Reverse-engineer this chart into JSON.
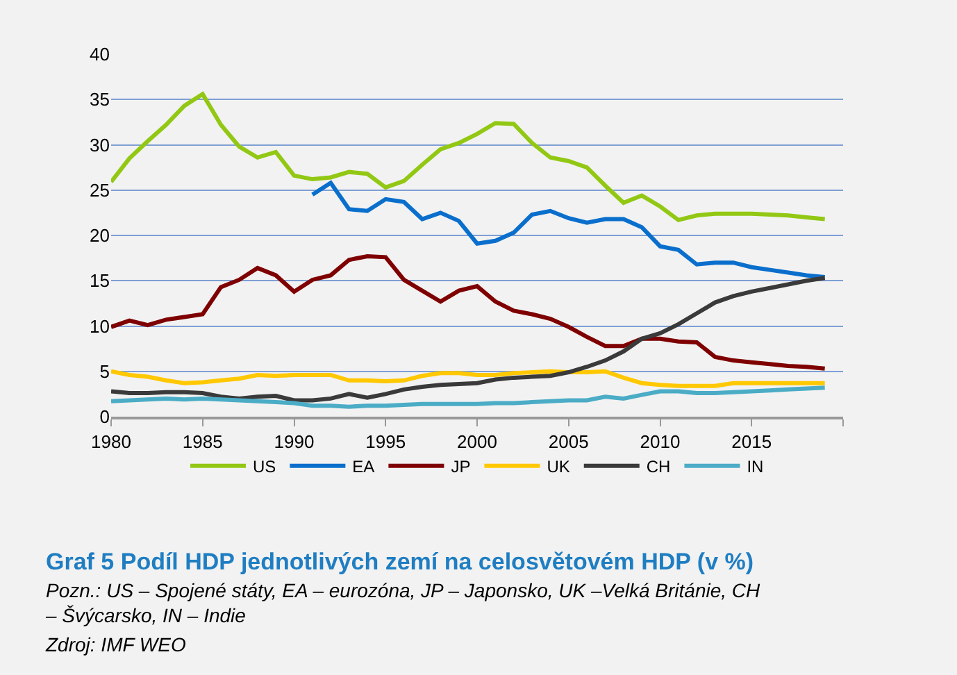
{
  "chart_data": {
    "type": "line",
    "title": "Graf 5 Podíl HDP jednotlivých zemí na celosvětovém HDP (v %)",
    "annotations": [
      "Pozn.: US – Spojené státy, EA – eurozóna, JP – Japonsko, UK –Velká Británie, CH – Švýcarsko, IN – Indie",
      "Zdroj: IMF WEO"
    ],
    "x": [
      1980,
      1981,
      1982,
      1983,
      1984,
      1985,
      1986,
      1987,
      1988,
      1989,
      1990,
      1991,
      1992,
      1993,
      1994,
      1995,
      1996,
      1997,
      1998,
      1999,
      2000,
      2001,
      2002,
      2003,
      2004,
      2005,
      2006,
      2007,
      2008,
      2009,
      2010,
      2011,
      2012,
      2013,
      2014,
      2015,
      2016,
      2017,
      2018,
      2019
    ],
    "series": [
      {
        "name": "US",
        "color": "#92c814",
        "values": [
          25.9,
          28.5,
          30.4,
          32.2,
          34.3,
          35.6,
          32.2,
          29.8,
          28.6,
          29.2,
          26.6,
          26.2,
          26.4,
          27.0,
          26.8,
          25.3,
          26.0,
          27.8,
          29.5,
          30.2,
          31.2,
          32.4,
          32.3,
          30.2,
          28.6,
          28.2,
          27.5,
          25.5,
          23.6,
          24.4,
          23.2,
          21.7,
          22.2,
          22.4,
          22.4,
          22.4,
          22.3,
          22.2,
          22.0,
          21.8
        ]
      },
      {
        "name": "EA",
        "color": "#0a6fcc",
        "values": [
          null,
          null,
          null,
          null,
          null,
          null,
          null,
          null,
          null,
          null,
          null,
          24.5,
          25.8,
          22.9,
          22.7,
          24.0,
          23.7,
          21.8,
          22.5,
          21.6,
          19.1,
          19.4,
          20.3,
          22.3,
          22.7,
          21.9,
          21.4,
          21.8,
          21.8,
          20.9,
          18.8,
          18.4,
          16.8,
          17.0,
          17.0,
          16.5,
          16.2,
          15.9,
          15.6,
          15.4
        ]
      },
      {
        "name": "JP",
        "color": "#7f0000",
        "values": [
          9.9,
          10.6,
          10.1,
          10.7,
          11.0,
          11.3,
          14.3,
          15.1,
          16.4,
          15.6,
          13.8,
          15.1,
          15.6,
          17.3,
          17.7,
          17.6,
          15.1,
          13.9,
          12.7,
          13.9,
          14.4,
          12.7,
          11.7,
          11.3,
          10.8,
          9.9,
          8.8,
          7.8,
          7.8,
          8.6,
          8.6,
          8.3,
          8.2,
          6.6,
          6.2,
          6.0,
          5.8,
          5.6,
          5.5,
          5.3
        ]
      },
      {
        "name": "UK",
        "color": "#ffc800",
        "values": [
          5.0,
          4.6,
          4.4,
          4.0,
          3.7,
          3.8,
          4.0,
          4.2,
          4.6,
          4.5,
          4.6,
          4.6,
          4.6,
          4.0,
          4.0,
          3.9,
          4.0,
          4.5,
          4.8,
          4.8,
          4.6,
          4.6,
          4.8,
          4.9,
          5.0,
          4.9,
          4.9,
          5.0,
          4.3,
          3.7,
          3.5,
          3.4,
          3.4,
          3.4,
          3.7,
          3.7,
          3.7,
          3.7,
          3.7,
          3.7
        ]
      },
      {
        "name": "CH",
        "color": "#3a3a3a",
        "values": [
          2.8,
          2.6,
          2.6,
          2.7,
          2.7,
          2.6,
          2.2,
          2.0,
          2.2,
          2.3,
          1.8,
          1.8,
          2.0,
          2.5,
          2.1,
          2.5,
          3.0,
          3.3,
          3.5,
          3.6,
          3.7,
          4.1,
          4.3,
          4.4,
          4.5,
          4.9,
          5.5,
          6.2,
          7.2,
          8.6,
          9.2,
          10.2,
          11.4,
          12.6,
          13.3,
          13.8,
          14.2,
          14.6,
          15.0,
          15.3
        ]
      },
      {
        "name": "IN",
        "color": "#4bacc6",
        "values": [
          1.7,
          1.8,
          1.9,
          2.0,
          1.9,
          2.0,
          1.9,
          1.8,
          1.7,
          1.6,
          1.5,
          1.2,
          1.2,
          1.1,
          1.2,
          1.2,
          1.3,
          1.4,
          1.4,
          1.4,
          1.4,
          1.5,
          1.5,
          1.6,
          1.7,
          1.8,
          1.8,
          2.2,
          2.0,
          2.4,
          2.8,
          2.8,
          2.6,
          2.6,
          2.7,
          2.8,
          2.9,
          3.0,
          3.1,
          3.2
        ]
      }
    ],
    "xlim": [
      1980,
      2020
    ],
    "xticks": [
      1980,
      1985,
      1990,
      1995,
      2000,
      2005,
      2010,
      2015,
      {
        "value": 2020,
        "label": null
      }
    ],
    "ylim": [
      0,
      40
    ],
    "yticks": [
      0,
      5,
      10,
      15,
      20,
      25,
      30,
      35,
      40
    ],
    "grid": "y",
    "legend": "bottom",
    "marker": "none",
    "line_style": "solid"
  }
}
